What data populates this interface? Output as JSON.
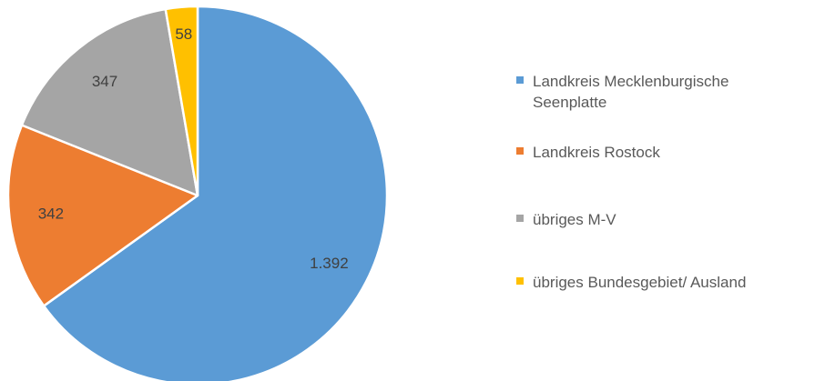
{
  "chart_data": {
    "type": "pie",
    "title": "",
    "categories": [
      "Landkreis Mecklenburgische Seenplatte",
      "Landkreis Rostock",
      "übriges M-V",
      "übriges Bundesgebiet/ Ausland"
    ],
    "values": [
      1392,
      342,
      347,
      58
    ],
    "value_labels": [
      "1.392",
      "342",
      "347",
      "58"
    ],
    "colors": [
      "#5B9BD5",
      "#ED7D31",
      "#A5A5A5",
      "#FFC000"
    ],
    "legend_position": "right",
    "slice_border_color": "#ffffff"
  }
}
